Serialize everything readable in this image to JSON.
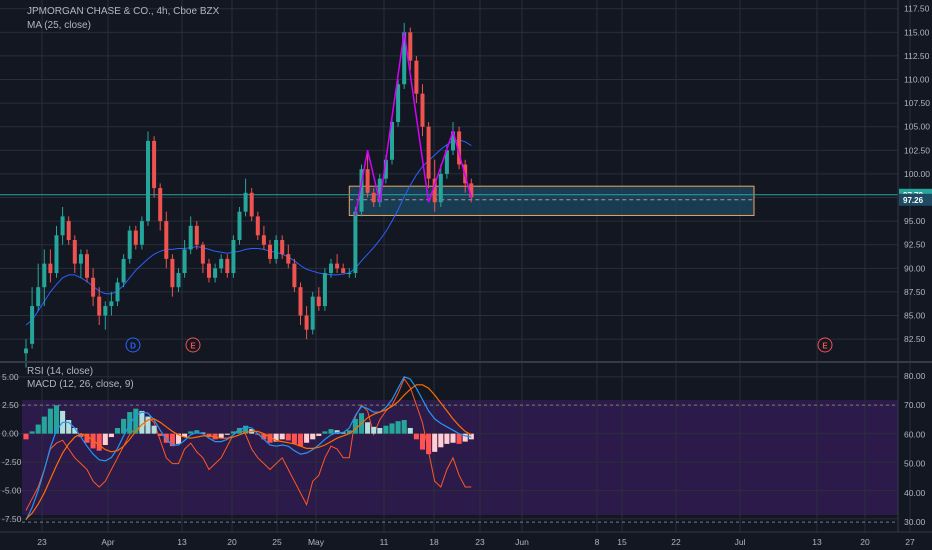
{
  "header": {
    "symbol": "JPMORGAN CHASE & CO., 4h, Cboe BZX",
    "ma_label": "MA (25, close)",
    "rsi_label": "RSI (14, close)",
    "macd_label": "MACD (12, 26, close, 9)"
  },
  "colors": {
    "background": "#131722",
    "grid": "#2a2e39",
    "up": "#26a69a",
    "down": "#ef5350",
    "ma": "#2962ff",
    "pattern": "#d500f9",
    "zone_border": "#f0a35a",
    "price_line": "#26a69a",
    "rsi_band": "#311b52",
    "rsi_line": "#ff5722",
    "macd_line": "#2196f3",
    "signal_line": "#ff6d00"
  },
  "chart_data": [
    {
      "type": "candlestick",
      "title": "JPMORGAN CHASE & CO., 4h, Cboe BZX",
      "x_ticks": [
        "23",
        "Apr",
        "13",
        "20",
        "25",
        "May",
        "11",
        "18",
        "23",
        "Jun",
        "8",
        "15",
        "22",
        "Jul",
        "13",
        "20",
        "27"
      ],
      "y_ticks": [
        82.5,
        85.0,
        87.5,
        90.0,
        92.5,
        95.0,
        97.5,
        100.0,
        102.5,
        105.0,
        107.5,
        110.0,
        112.5,
        115.0,
        117.5
      ],
      "ylim": [
        80.5,
        118.0
      ],
      "price_tags": {
        "current": 97.79,
        "zone": 97.26
      },
      "earnings_markers": [
        "D",
        "E",
        "E"
      ],
      "ohlc": [
        [
          81.0,
          82.5,
          79.5,
          81.5
        ],
        [
          82.0,
          88.0,
          81.5,
          86.0
        ],
        [
          86.0,
          90.5,
          85.5,
          88.0
        ],
        [
          88.0,
          92.0,
          86.0,
          90.5
        ],
        [
          90.5,
          92.0,
          88.5,
          89.5
        ],
        [
          89.5,
          94.5,
          89.0,
          93.5
        ],
        [
          93.5,
          96.5,
          92.5,
          95.5
        ],
        [
          95.0,
          95.5,
          92.5,
          93.0
        ],
        [
          93.0,
          93.5,
          89.5,
          90.5
        ],
        [
          90.5,
          92.0,
          89.0,
          91.5
        ],
        [
          91.5,
          92.0,
          88.5,
          89.0
        ],
        [
          89.0,
          90.0,
          86.0,
          87.0
        ],
        [
          87.0,
          88.0,
          84.0,
          85.0
        ],
        [
          85.0,
          86.5,
          83.5,
          86.0
        ],
        [
          86.0,
          87.5,
          85.0,
          86.5
        ],
        [
          86.5,
          89.0,
          86.0,
          88.5
        ],
        [
          88.5,
          91.5,
          88.0,
          91.0
        ],
        [
          91.0,
          94.5,
          90.5,
          94.0
        ],
        [
          94.0,
          94.5,
          92.0,
          92.5
        ],
        [
          92.5,
          95.5,
          92.0,
          95.0
        ],
        [
          95.0,
          104.5,
          94.5,
          103.5
        ],
        [
          103.5,
          104.0,
          97.5,
          98.5
        ],
        [
          98.5,
          99.0,
          94.0,
          95.0
        ],
        [
          95.0,
          96.0,
          90.0,
          91.0
        ],
        [
          91.0,
          91.5,
          87.0,
          88.0
        ],
        [
          88.0,
          90.0,
          87.5,
          89.5
        ],
        [
          89.5,
          93.0,
          89.0,
          92.0
        ],
        [
          92.0,
          95.5,
          91.5,
          94.5
        ],
        [
          94.5,
          95.0,
          92.0,
          92.5
        ],
        [
          92.5,
          92.8,
          89.5,
          90.5
        ],
        [
          90.5,
          91.0,
          88.5,
          89.0
        ],
        [
          89.0,
          90.5,
          88.5,
          90.0
        ],
        [
          90.0,
          91.5,
          89.5,
          91.0
        ],
        [
          91.0,
          91.5,
          89.0,
          89.5
        ],
        [
          89.5,
          93.5,
          89.0,
          93.0
        ],
        [
          93.0,
          96.5,
          92.5,
          96.0
        ],
        [
          96.0,
          99.5,
          95.5,
          98.0
        ],
        [
          98.0,
          98.5,
          95.0,
          95.5
        ],
        [
          95.5,
          96.0,
          93.0,
          93.5
        ],
        [
          93.5,
          94.5,
          92.0,
          92.5
        ],
        [
          92.5,
          93.0,
          90.5,
          91.0
        ],
        [
          91.0,
          93.5,
          90.5,
          93.0
        ],
        [
          93.0,
          93.5,
          91.0,
          91.5
        ],
        [
          91.5,
          92.5,
          90.0,
          90.5
        ],
        [
          90.5,
          91.0,
          87.5,
          88.0
        ],
        [
          88.0,
          88.5,
          84.0,
          85.0
        ],
        [
          85.0,
          86.0,
          82.5,
          83.5
        ],
        [
          83.5,
          87.5,
          83.0,
          87.0
        ],
        [
          87.0,
          88.0,
          85.5,
          86.0
        ],
        [
          86.0,
          90.0,
          85.5,
          89.5
        ],
        [
          89.5,
          91.0,
          89.0,
          90.5
        ],
        [
          90.5,
          91.5,
          89.5,
          90.0
        ],
        [
          90.0,
          90.5,
          89.5,
          89.5
        ],
        [
          89.5,
          90.0,
          89.0,
          89.5
        ],
        [
          89.5,
          96.5,
          89.0,
          96.0
        ],
        [
          96.0,
          101.0,
          95.5,
          100.5
        ],
        [
          100.5,
          102.5,
          97.5,
          98.0
        ],
        [
          98.0,
          98.5,
          96.5,
          97.0
        ],
        [
          97.0,
          100.0,
          96.5,
          99.5
        ],
        [
          99.5,
          102.0,
          99.0,
          101.5
        ],
        [
          101.5,
          106.0,
          101.0,
          105.5
        ],
        [
          105.5,
          110.0,
          105.0,
          109.5
        ],
        [
          109.5,
          116.0,
          109.0,
          115.0
        ],
        [
          115.0,
          115.5,
          111.0,
          112.0
        ],
        [
          112.0,
          112.5,
          107.5,
          108.5
        ],
        [
          108.5,
          109.5,
          104.0,
          105.0
        ],
        [
          105.0,
          105.5,
          98.5,
          99.5
        ],
        [
          99.5,
          101.5,
          96.0,
          97.0
        ],
        [
          97.0,
          101.0,
          96.5,
          100.0
        ],
        [
          100.0,
          103.0,
          99.5,
          102.5
        ],
        [
          102.5,
          105.5,
          102.0,
          104.5
        ],
        [
          104.5,
          105.0,
          100.5,
          101.0
        ],
        [
          101.0,
          101.5,
          98.0,
          99.0
        ],
        [
          99.0,
          99.5,
          97.0,
          97.5
        ]
      ],
      "ma_25": [
        84.0,
        84.5,
        85.5,
        86.5,
        87.5,
        88.3,
        89.0,
        89.3,
        89.3,
        89.0,
        88.6,
        88.1,
        87.6,
        87.3,
        87.3,
        87.6,
        88.2,
        89.0,
        89.8,
        90.4,
        91.0,
        91.5,
        91.8,
        92.0,
        92.0,
        92.1,
        92.1,
        92.2,
        92.3,
        92.2,
        92.0,
        91.8,
        91.7,
        91.6,
        91.7,
        91.8,
        92.0,
        92.1,
        92.1,
        92.0,
        91.8,
        91.7,
        91.5,
        91.2,
        90.8,
        90.3,
        89.9,
        89.7,
        89.5,
        89.4,
        89.3,
        89.3,
        89.4,
        89.5,
        90.0,
        90.8,
        91.5,
        92.2,
        93.0,
        93.9,
        95.0,
        96.2,
        97.6,
        98.8,
        99.9,
        100.8,
        101.4,
        102.0,
        102.6,
        103.1,
        103.5,
        103.6,
        103.4,
        103.0
      ],
      "zone": {
        "top": 98.7,
        "bottom": 95.6,
        "inner_line": 97.26
      },
      "pattern_points": [
        [
          54,
          95.6
        ],
        [
          56,
          102.5
        ],
        [
          58,
          97.0
        ],
        [
          62,
          115.0
        ],
        [
          66,
          97.0
        ],
        [
          70,
          104.5
        ],
        [
          73,
          97.5
        ]
      ]
    },
    {
      "type": "line",
      "title": "RSI (14, close)",
      "y_ticks": [
        30.0,
        40.0,
        50.0,
        60.0,
        70.0,
        80.0
      ],
      "ylim": [
        28.0,
        82.0
      ],
      "bands": [
        30.0,
        70.0
      ],
      "values": [
        34,
        38,
        42,
        48,
        55,
        57,
        58,
        55,
        52,
        50,
        48,
        44,
        42,
        44,
        48,
        52,
        56,
        60,
        62,
        61,
        66,
        64,
        58,
        52,
        50,
        50,
        55,
        57,
        54,
        52,
        48,
        50,
        52,
        56,
        60,
        62,
        60,
        55,
        52,
        50,
        48,
        50,
        52,
        48,
        44,
        40,
        36,
        44,
        46,
        52,
        56,
        55,
        52,
        52,
        66,
        70,
        68,
        60,
        65,
        68,
        70,
        74,
        79,
        76,
        70,
        64,
        54,
        44,
        42,
        48,
        52,
        46,
        42,
        42
      ]
    },
    {
      "type": "bar",
      "title": "MACD (12, 26, close, 9)",
      "y_ticks": [
        -7.5,
        -5.0,
        -2.5,
        0.0,
        2.5,
        5.0
      ],
      "ylim": [
        -8.3,
        5.6
      ],
      "histogram": [
        -0.5,
        0.2,
        0.8,
        1.5,
        2.2,
        2.5,
        2.0,
        1.2,
        0.5,
        -0.3,
        -0.8,
        -1.3,
        -1.5,
        -1.0,
        -0.3,
        0.5,
        1.3,
        1.9,
        2.2,
        2.0,
        1.5,
        0.7,
        -0.2,
        -0.8,
        -1.1,
        -0.9,
        -0.3,
        0.2,
        0.3,
        0.1,
        -0.3,
        -0.5,
        -0.4,
        -0.1,
        0.2,
        0.5,
        0.7,
        0.4,
        -0.1,
        -0.5,
        -0.8,
        -0.7,
        -0.5,
        -0.6,
        -0.9,
        -1.1,
        -0.8,
        -0.5,
        -0.2,
        0.2,
        0.4,
        0.3,
        0.1,
        0.3,
        1.3,
        1.8,
        1.0,
        0.6,
        0.5,
        0.7,
        0.9,
        1.1,
        1.2,
        0.5,
        -0.5,
        -1.4,
        -1.8,
        -1.6,
        -1.2,
        -0.9,
        -0.8,
        -0.9,
        -0.7,
        -0.5
      ],
      "macd": [
        -7.6,
        -6.5,
        -5.0,
        -3.2,
        -1.2,
        0.3,
        1.0,
        1.0,
        0.5,
        -0.3,
        -1.1,
        -1.8,
        -2.3,
        -2.4,
        -2.1,
        -1.3,
        -0.2,
        0.8,
        1.6,
        1.9,
        1.8,
        1.2,
        0.3,
        -0.5,
        -1.0,
        -1.0,
        -0.6,
        -0.1,
        0.1,
        0.0,
        -0.4,
        -0.7,
        -0.7,
        -0.5,
        -0.1,
        0.3,
        0.6,
        0.5,
        0.0,
        -0.5,
        -1.0,
        -1.1,
        -1.0,
        -1.1,
        -1.5,
        -1.8,
        -1.7,
        -1.4,
        -1.0,
        -0.5,
        -0.1,
        0.1,
        0.1,
        0.5,
        1.6,
        2.4,
        2.2,
        1.9,
        1.9,
        2.3,
        3.0,
        4.0,
        5.0,
        4.8,
        4.0,
        3.0,
        2.0,
        1.3,
        0.9,
        0.6,
        0.3,
        0.0,
        -0.2,
        -0.3
      ],
      "signal": [
        -7.5,
        -7.0,
        -6.2,
        -5.2,
        -4.0,
        -2.8,
        -1.7,
        -0.9,
        -0.3,
        0.0,
        -0.2,
        -0.6,
        -1.0,
        -1.4,
        -1.6,
        -1.5,
        -1.1,
        -0.5,
        0.2,
        0.8,
        1.2,
        1.3,
        1.0,
        0.6,
        0.2,
        -0.1,
        -0.3,
        -0.4,
        -0.3,
        -0.2,
        -0.2,
        -0.3,
        -0.4,
        -0.4,
        -0.3,
        -0.1,
        0.1,
        0.2,
        0.2,
        0.0,
        -0.3,
        -0.6,
        -0.7,
        -0.8,
        -0.9,
        -1.1,
        -1.3,
        -1.3,
        -1.2,
        -1.0,
        -0.7,
        -0.4,
        -0.2,
        0.0,
        0.4,
        0.9,
        1.4,
        1.7,
        1.9,
        2.1,
        2.4,
        2.8,
        3.4,
        3.9,
        4.3,
        4.3,
        4.0,
        3.4,
        2.7,
        2.0,
        1.3,
        0.7,
        0.2,
        -0.1
      ]
    }
  ]
}
